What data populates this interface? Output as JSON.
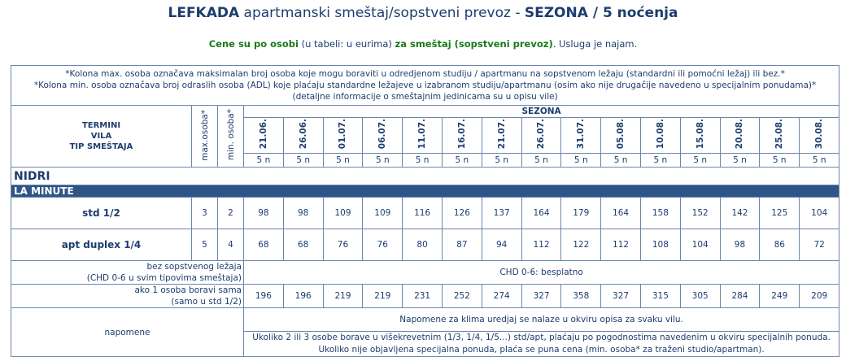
{
  "title": {
    "bold1": "LEFKADA",
    "normal": " apartmanski smeštaj/sopstveni prevoz - ",
    "bold2": "SEZONA / 5 noćenja"
  },
  "subtitle": {
    "green1": "Cene su po osobi",
    "normal1": " (u tabeli: u eurima) ",
    "green2": "za smeštaj (sopstveni prevoz)",
    "normal2": ". Usluga je najam."
  },
  "notes": {
    "line1": "*Kolona max. osoba označava maksimalan broj osoba koje mogu boraviti u odredjenom studiju / apartmanu na sopstvenom ležaju (standardni ili pomoćni ležaj) ili bez.*",
    "line2": "*Kolona min. osoba označava broj odraslih osoba (ADL) koje plaćaju standardne ležajeve u izabranom studiju/apartmanu (osim ako nije drugačije navedeno u specijalnim ponudama)*",
    "line3": "(detaljne informacije o smeštajnim jedinicama su u opisu vile)"
  },
  "header": {
    "label1": "TERMINI",
    "label2": "VILA",
    "label3": "TIP SMEŠTAJA",
    "max_label": "max.osoba*",
    "min_label": "min. osoba*",
    "season_label": "SEZONA"
  },
  "dates": [
    "21.06.",
    "26.06.",
    "01.07.",
    "06.07.",
    "11.07.",
    "16.07.",
    "21.07.",
    "26.07.",
    "31.07.",
    "05.08.",
    "10.08.",
    "15.08.",
    "20.08.",
    "25.08.",
    "30.08."
  ],
  "nights": [
    "5 n",
    "5 n",
    "5 n",
    "5 n",
    "5 n",
    "5 n",
    "5 n",
    "5 n",
    "5 n",
    "5 n",
    "5 n",
    "5 n",
    "5 n",
    "5 n",
    "5 n"
  ],
  "section": {
    "villa": "NIDRI",
    "category": "LA MINUTE"
  },
  "rooms": [
    {
      "name": "std 1/2",
      "max": "3",
      "min": "2",
      "prices": [
        "98",
        "98",
        "109",
        "109",
        "116",
        "126",
        "137",
        "164",
        "179",
        "164",
        "158",
        "152",
        "142",
        "125",
        "104"
      ]
    },
    {
      "name": "apt duplex 1/4",
      "max": "5",
      "min": "4",
      "prices": [
        "68",
        "68",
        "76",
        "76",
        "80",
        "87",
        "94",
        "112",
        "122",
        "112",
        "108",
        "104",
        "98",
        "86",
        "72"
      ]
    }
  ],
  "extras": {
    "no_bed_label1": "bez sopstvenog ležaja",
    "no_bed_label2": "(CHD 0-6 u svim tipovima smeštaja)",
    "no_bed_value": "CHD 0-6: besplatno",
    "single_label1": "ako 1 osoba boravi sama",
    "single_label2": "(samo u std 1/2)",
    "single_prices": [
      "196",
      "196",
      "219",
      "219",
      "231",
      "252",
      "274",
      "327",
      "358",
      "327",
      "315",
      "305",
      "284",
      "249",
      "209"
    ]
  },
  "remarks": {
    "label": "napomene",
    "line1": "Napomene za klima uredjaj se nalaze u okviru opisa za svaku vilu.",
    "line2": "Ukoliko 2 ili 3 osobe borave u višekrevetnim (1/3, 1/4, 1/5...) std/apt, plaćaju po pogodnostima navedenim u okviru specijalnih ponuda.",
    "line3": "Ukoliko nije objavljena specijalna ponuda, plaća se puna cena (min. osoba* za traženi studio/apartman)."
  }
}
